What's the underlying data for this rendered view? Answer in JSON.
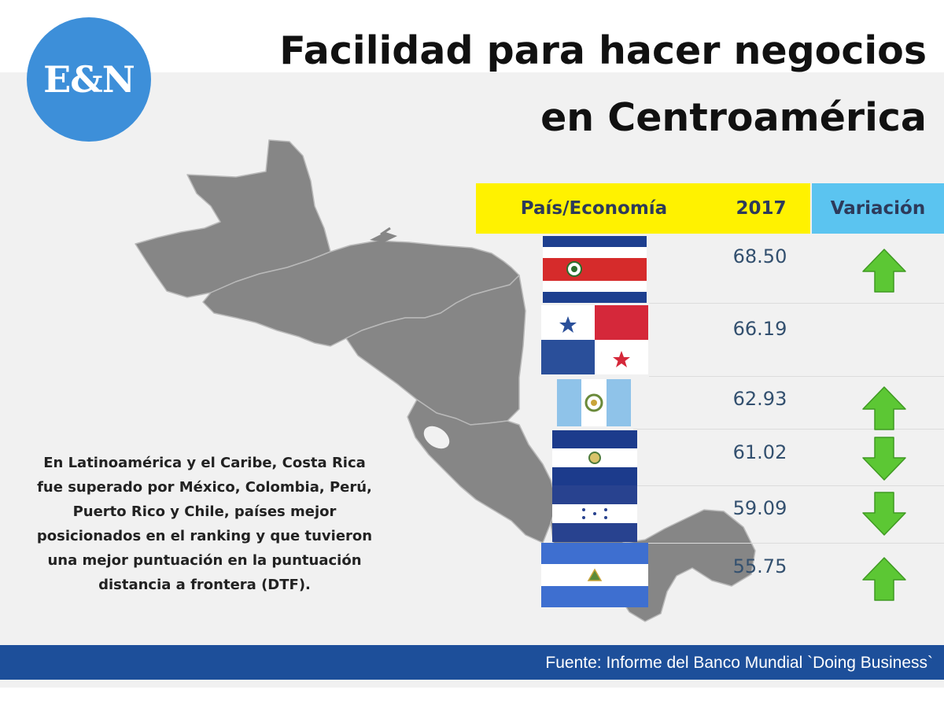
{
  "logo": {
    "text": "E&N",
    "color": "#3d8fd9"
  },
  "title": {
    "line1": "Facilidad para hacer negocios",
    "line2": "en Centroamérica"
  },
  "table": {
    "headers": {
      "country": "País/Economía",
      "year": "2017",
      "variation": "Variación"
    },
    "rows": [
      {
        "country": "Costa Rica",
        "flag": "costa-rica-flag-icon",
        "score": "68.50",
        "variation": "up"
      },
      {
        "country": "Panamá",
        "flag": "panama-flag-icon",
        "score": "66.19",
        "variation": "none"
      },
      {
        "country": "Guatemala",
        "flag": "guatemala-flag-icon",
        "score": "62.93",
        "variation": "up"
      },
      {
        "country": "El Salvador",
        "flag": "el-salvador-flag-icon",
        "score": "61.02",
        "variation": "down"
      },
      {
        "country": "Honduras",
        "flag": "honduras-flag-icon",
        "score": "59.09",
        "variation": "down"
      },
      {
        "country": "Nicaragua",
        "flag": "nicaragua-flag-icon",
        "score": "55.75",
        "variation": "up"
      }
    ]
  },
  "note": "En Latinoamérica y el Caribe, Costa Rica fue superado por México, Colombia, Perú, Puerto Rico y Chile, países mejor posicionados en el ranking y que tuvieron una mejor puntuación en la puntuación distancia a frontera (DTF).",
  "footer": {
    "source": "Fuente: Informe del Banco Mundial `Doing Business`"
  },
  "colors": {
    "header_yellow": "#fff200",
    "header_blue": "#5bc4f0",
    "arrow_green": "#5cc734",
    "footer_blue": "#1d4f9a",
    "map_gray": "#868686"
  }
}
